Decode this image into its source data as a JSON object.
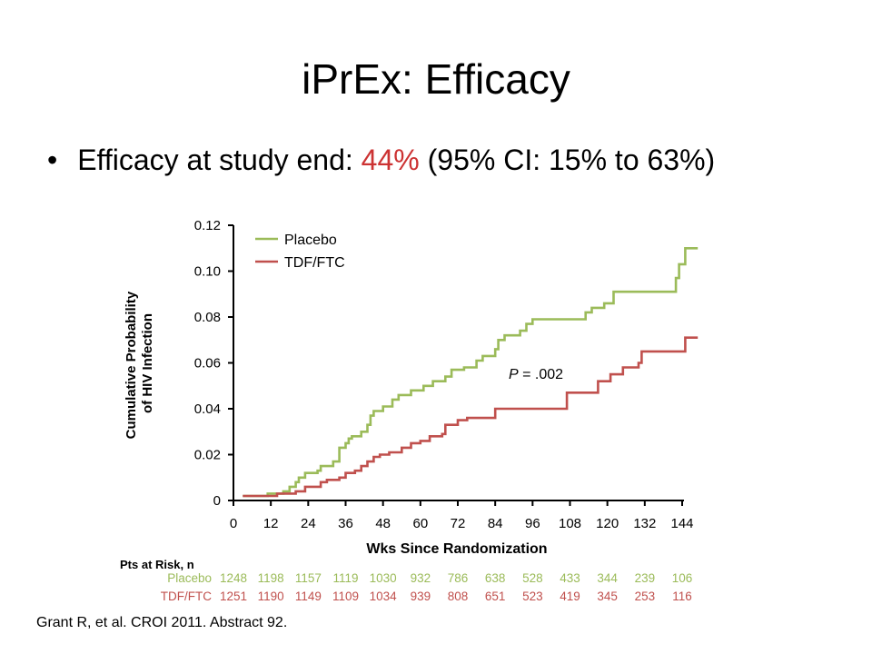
{
  "title": "iPrEx: Efficacy",
  "bullet": {
    "prefix": "Efficacy at study end:",
    "highlight": "44%",
    "suffix": "(95% CI: 15% to 63%)",
    "highlight_color": "#cc3333"
  },
  "chart_data": {
    "type": "line",
    "xlabel": "Wks Since Randomization",
    "ylabel_lines": [
      "Cumulative Probability",
      "of HIV Infection"
    ],
    "xlim": [
      0,
      144
    ],
    "ylim": [
      0,
      0.12
    ],
    "x_ticks": [
      0,
      12,
      24,
      36,
      48,
      60,
      72,
      84,
      96,
      108,
      120,
      132,
      144
    ],
    "x_tick_labels": [
      "0",
      "12",
      "24",
      "36",
      "48",
      "60",
      "72",
      "84",
      "96",
      "108",
      "120",
      "132",
      "144"
    ],
    "y_ticks": [
      0,
      0.02,
      0.04,
      0.06,
      0.08,
      0.1,
      0.12
    ],
    "y_tick_labels": [
      "0",
      "0.02",
      "0.04",
      "0.06",
      "0.08",
      "0.10",
      "0.12"
    ],
    "step": true,
    "legend_position": "top-left",
    "annotation": {
      "prefix": "P",
      "text": "= .002"
    },
    "series": [
      {
        "name": "Placebo",
        "color": "#9bbb59",
        "points": [
          [
            3,
            0.002
          ],
          [
            11,
            0.002
          ],
          [
            11,
            0.003
          ],
          [
            16,
            0.003
          ],
          [
            16,
            0.004
          ],
          [
            18,
            0.004
          ],
          [
            18,
            0.006
          ],
          [
            20,
            0.006
          ],
          [
            20,
            0.008
          ],
          [
            21,
            0.008
          ],
          [
            21,
            0.01
          ],
          [
            23,
            0.01
          ],
          [
            23,
            0.012
          ],
          [
            27,
            0.012
          ],
          [
            27,
            0.013
          ],
          [
            28,
            0.013
          ],
          [
            28,
            0.015
          ],
          [
            32,
            0.015
          ],
          [
            32,
            0.017
          ],
          [
            34,
            0.017
          ],
          [
            34,
            0.023
          ],
          [
            36,
            0.023
          ],
          [
            36,
            0.025
          ],
          [
            37,
            0.025
          ],
          [
            37,
            0.027
          ],
          [
            38,
            0.027
          ],
          [
            38,
            0.028
          ],
          [
            41,
            0.028
          ],
          [
            41,
            0.03
          ],
          [
            43,
            0.03
          ],
          [
            43,
            0.033
          ],
          [
            44,
            0.033
          ],
          [
            44,
            0.037
          ],
          [
            45,
            0.037
          ],
          [
            45,
            0.039
          ],
          [
            48,
            0.039
          ],
          [
            48,
            0.041
          ],
          [
            51,
            0.041
          ],
          [
            51,
            0.044
          ],
          [
            53,
            0.044
          ],
          [
            53,
            0.046
          ],
          [
            57,
            0.046
          ],
          [
            57,
            0.048
          ],
          [
            61,
            0.048
          ],
          [
            61,
            0.05
          ],
          [
            64,
            0.05
          ],
          [
            64,
            0.052
          ],
          [
            68,
            0.052
          ],
          [
            68,
            0.054
          ],
          [
            70,
            0.054
          ],
          [
            70,
            0.057
          ],
          [
            74,
            0.057
          ],
          [
            74,
            0.058
          ],
          [
            78,
            0.058
          ],
          [
            78,
            0.061
          ],
          [
            80,
            0.061
          ],
          [
            80,
            0.063
          ],
          [
            84,
            0.063
          ],
          [
            84,
            0.066
          ],
          [
            85,
            0.066
          ],
          [
            85,
            0.07
          ],
          [
            87,
            0.07
          ],
          [
            87,
            0.072
          ],
          [
            92,
            0.072
          ],
          [
            92,
            0.074
          ],
          [
            94,
            0.074
          ],
          [
            94,
            0.077
          ],
          [
            96,
            0.077
          ],
          [
            96,
            0.079
          ],
          [
            113,
            0.079
          ],
          [
            113,
            0.082
          ],
          [
            115,
            0.082
          ],
          [
            115,
            0.084
          ],
          [
            119,
            0.084
          ],
          [
            119,
            0.086
          ],
          [
            122,
            0.086
          ],
          [
            122,
            0.091
          ],
          [
            142,
            0.091
          ],
          [
            142,
            0.097
          ],
          [
            143,
            0.097
          ],
          [
            143,
            0.103
          ],
          [
            145,
            0.103
          ],
          [
            145,
            0.11
          ],
          [
            149,
            0.11
          ]
        ]
      },
      {
        "name": "TDF/FTC",
        "color": "#c0504d",
        "points": [
          [
            3,
            0.002
          ],
          [
            14,
            0.002
          ],
          [
            14,
            0.003
          ],
          [
            20,
            0.003
          ],
          [
            20,
            0.004
          ],
          [
            23,
            0.004
          ],
          [
            23,
            0.006
          ],
          [
            28,
            0.006
          ],
          [
            28,
            0.008
          ],
          [
            30,
            0.008
          ],
          [
            30,
            0.009
          ],
          [
            34,
            0.009
          ],
          [
            34,
            0.01
          ],
          [
            36,
            0.01
          ],
          [
            36,
            0.012
          ],
          [
            39,
            0.012
          ],
          [
            39,
            0.013
          ],
          [
            41,
            0.013
          ],
          [
            41,
            0.015
          ],
          [
            43,
            0.015
          ],
          [
            43,
            0.017
          ],
          [
            45,
            0.017
          ],
          [
            45,
            0.019
          ],
          [
            47,
            0.019
          ],
          [
            47,
            0.02
          ],
          [
            50,
            0.02
          ],
          [
            50,
            0.021
          ],
          [
            54,
            0.021
          ],
          [
            54,
            0.023
          ],
          [
            57,
            0.023
          ],
          [
            57,
            0.025
          ],
          [
            60,
            0.025
          ],
          [
            60,
            0.026
          ],
          [
            63,
            0.026
          ],
          [
            63,
            0.028
          ],
          [
            67,
            0.028
          ],
          [
            67,
            0.029
          ],
          [
            68,
            0.029
          ],
          [
            68,
            0.033
          ],
          [
            72,
            0.033
          ],
          [
            72,
            0.035
          ],
          [
            75,
            0.035
          ],
          [
            75,
            0.036
          ],
          [
            84,
            0.036
          ],
          [
            84,
            0.04
          ],
          [
            107,
            0.04
          ],
          [
            107,
            0.047
          ],
          [
            117,
            0.047
          ],
          [
            117,
            0.052
          ],
          [
            121,
            0.052
          ],
          [
            121,
            0.055
          ],
          [
            125,
            0.055
          ],
          [
            125,
            0.058
          ],
          [
            130,
            0.058
          ],
          [
            130,
            0.06
          ],
          [
            131,
            0.06
          ],
          [
            131,
            0.065
          ],
          [
            145,
            0.065
          ],
          [
            145,
            0.071
          ],
          [
            149,
            0.071
          ]
        ]
      }
    ],
    "at_risk": {
      "header": "Pts at Risk, n",
      "rows": [
        {
          "label": "Placebo",
          "color": "#9bbb59",
          "values": [
            "1248",
            "1198",
            "1157",
            "1119",
            "1030",
            "932",
            "786",
            "638",
            "528",
            "433",
            "344",
            "239",
            "106"
          ]
        },
        {
          "label": "TDF/FTC",
          "color": "#c0504d",
          "values": [
            "1251",
            "1190",
            "1149",
            "1109",
            "1034",
            "939",
            "808",
            "651",
            "523",
            "419",
            "345",
            "253",
            "116"
          ]
        }
      ]
    }
  },
  "citation": "Grant R, et al. CROI 2011. Abstract 92."
}
